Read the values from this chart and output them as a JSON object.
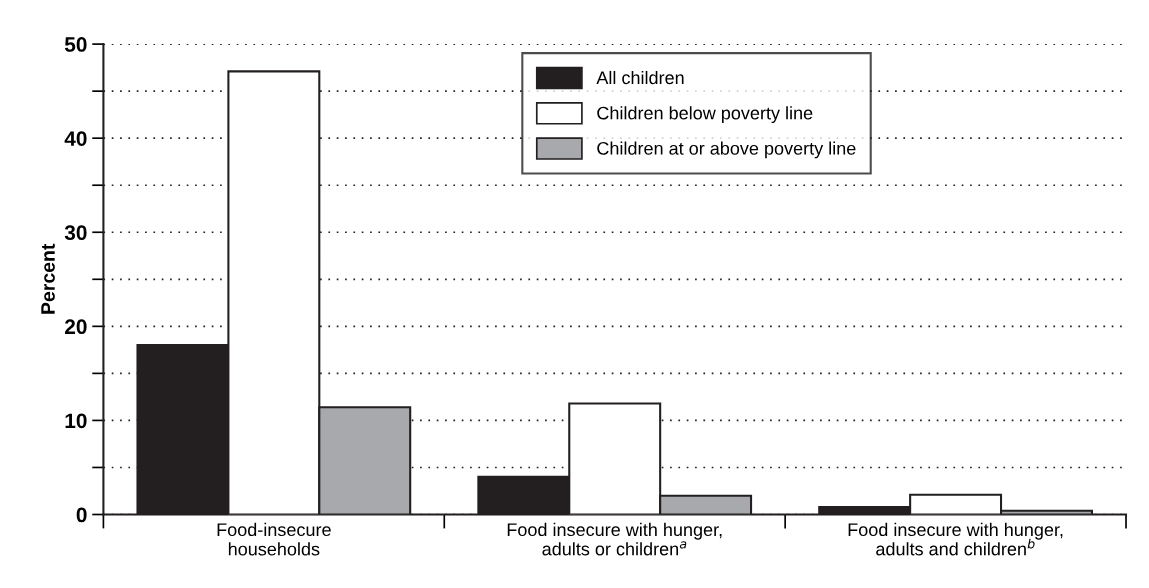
{
  "chart_data": {
    "type": "bar",
    "ylabel": "Percent",
    "categories": [
      "Food-insecure\nhouseholds",
      "Food insecure with hunger,\nadults or children$^{a}$",
      "Food insecure with hunger,\nadults and children$^{b}$"
    ],
    "series": [
      {
        "name": "All children",
        "color": "#231f20",
        "values": [
          18.0,
          4.0,
          0.8
        ]
      },
      {
        "name": "Children below poverty line",
        "color": "#ffffff",
        "values": [
          47.1,
          11.8,
          2.1
        ]
      },
      {
        "name": "Children at or above poverty line",
        "color": "#a7a9ac",
        "values": [
          11.4,
          2.0,
          0.4
        ]
      }
    ],
    "ylim": [
      0,
      50
    ],
    "yticks": [
      0,
      {
        "value": 5,
        "label": null
      },
      10,
      {
        "value": 15,
        "label": null
      },
      20,
      {
        "value": 25,
        "label": null
      },
      30,
      {
        "value": 35,
        "label": null
      },
      40,
      {
        "value": 45,
        "label": null
      },
      50
    ],
    "grid": "y",
    "legend": "top"
  }
}
